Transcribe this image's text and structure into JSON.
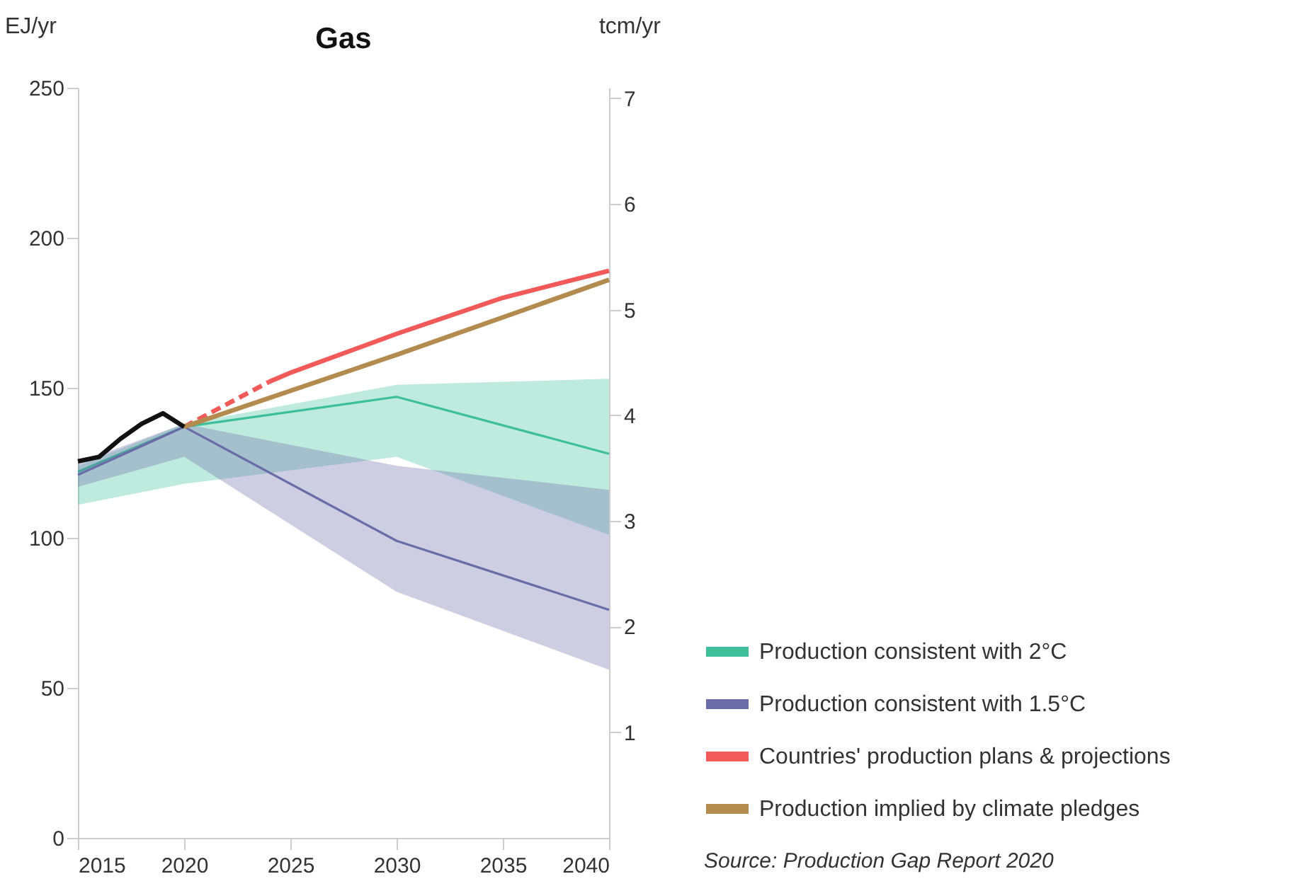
{
  "chart_data": {
    "type": "line",
    "title": "Gas",
    "ylabel": "EJ/yr",
    "y2label": "tcm/yr",
    "xlim": [
      2015,
      2040
    ],
    "xticks": [
      2015,
      2020,
      2025,
      2030,
      2035,
      2040
    ],
    "ylim": [
      0,
      250
    ],
    "yticks": [
      0,
      50,
      100,
      150,
      200,
      250
    ],
    "y2lim": [
      0,
      7.1
    ],
    "y2ticks": [
      1,
      2,
      3,
      4,
      5,
      6,
      7
    ],
    "grid": false,
    "legend": "bottom right",
    "marker": "none",
    "annotations": [
      "Source: Production Gap Report 2020"
    ],
    "series": [
      {
        "name": "Production consistent with 2°C",
        "color": "#3dbf9a",
        "x": [
          2015,
          2020,
          2030,
          2040
        ],
        "values": [
          122,
          137,
          147,
          128
        ],
        "lower": [
          111,
          118,
          127,
          101
        ],
        "upper": [
          124,
          138,
          151,
          153
        ]
      },
      {
        "name": "Production consistent with 1.5°C",
        "color": "#6b6ba8",
        "x": [
          2015,
          2020,
          2030,
          2040
        ],
        "values": [
          121,
          137,
          99,
          76
        ],
        "lower": [
          117,
          127,
          82,
          56
        ],
        "upper": [
          125,
          138,
          124,
          116
        ]
      },
      {
        "name": "Countries' production plans & projections",
        "color": "#f25a5a",
        "x": [
          2024,
          2025,
          2030,
          2035,
          2040
        ],
        "values": [
          152,
          155,
          168,
          180,
          189
        ]
      },
      {
        "color": "#f25a5a",
        "line_style": "dashed",
        "x": [
          2020,
          2024
        ],
        "values": [
          137,
          152
        ]
      },
      {
        "name": "Production implied by climate pledges",
        "color": "#b38b4f",
        "x": [
          2020,
          2030,
          2040
        ],
        "values": [
          137,
          161,
          186
        ]
      },
      {
        "color": "#111111",
        "x": [
          2015,
          2016,
          2017,
          2018,
          2019,
          2020
        ],
        "values": [
          125.5,
          127,
          133,
          138,
          141.5,
          137
        ]
      }
    ]
  }
}
